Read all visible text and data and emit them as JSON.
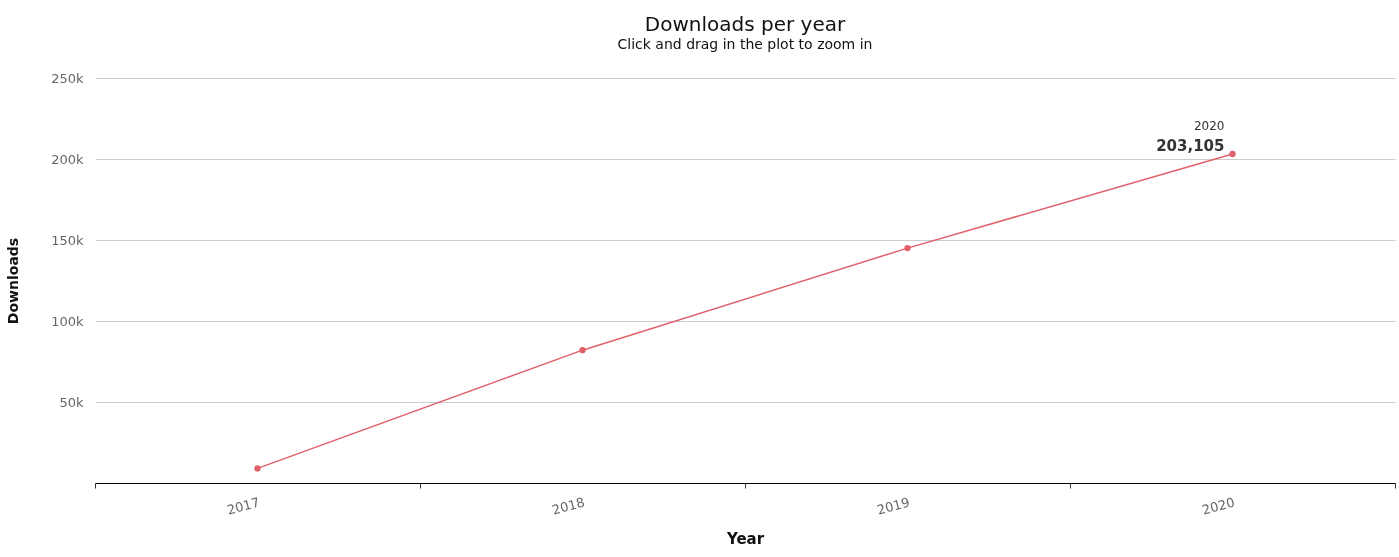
{
  "chart_data": {
    "type": "line",
    "title": "Downloads per year",
    "subtitle": "Click and drag in the plot to zoom in",
    "xlabel": "Year",
    "ylabel": "Downloads",
    "categories": [
      "2017",
      "2018",
      "2019",
      "2020"
    ],
    "series": [
      {
        "color": "#e0606a",
        "values": [
          9000,
          82000,
          145000,
          203105
        ],
        "value_labels": [
          null,
          null,
          null,
          "203,105"
        ]
      }
    ],
    "annotations": [
      "2020"
    ],
    "ylim": [
      0,
      250000
    ],
    "yticks": [
      {
        "value": 50000,
        "label": "50k"
      },
      {
        "value": 100000,
        "label": "100k"
      },
      {
        "value": 150000,
        "label": "150k"
      },
      {
        "value": 200000,
        "label": "200k"
      },
      {
        "value": 250000,
        "label": "250k"
      }
    ],
    "grid": "y",
    "marker": "circle",
    "line_style": "solid"
  }
}
